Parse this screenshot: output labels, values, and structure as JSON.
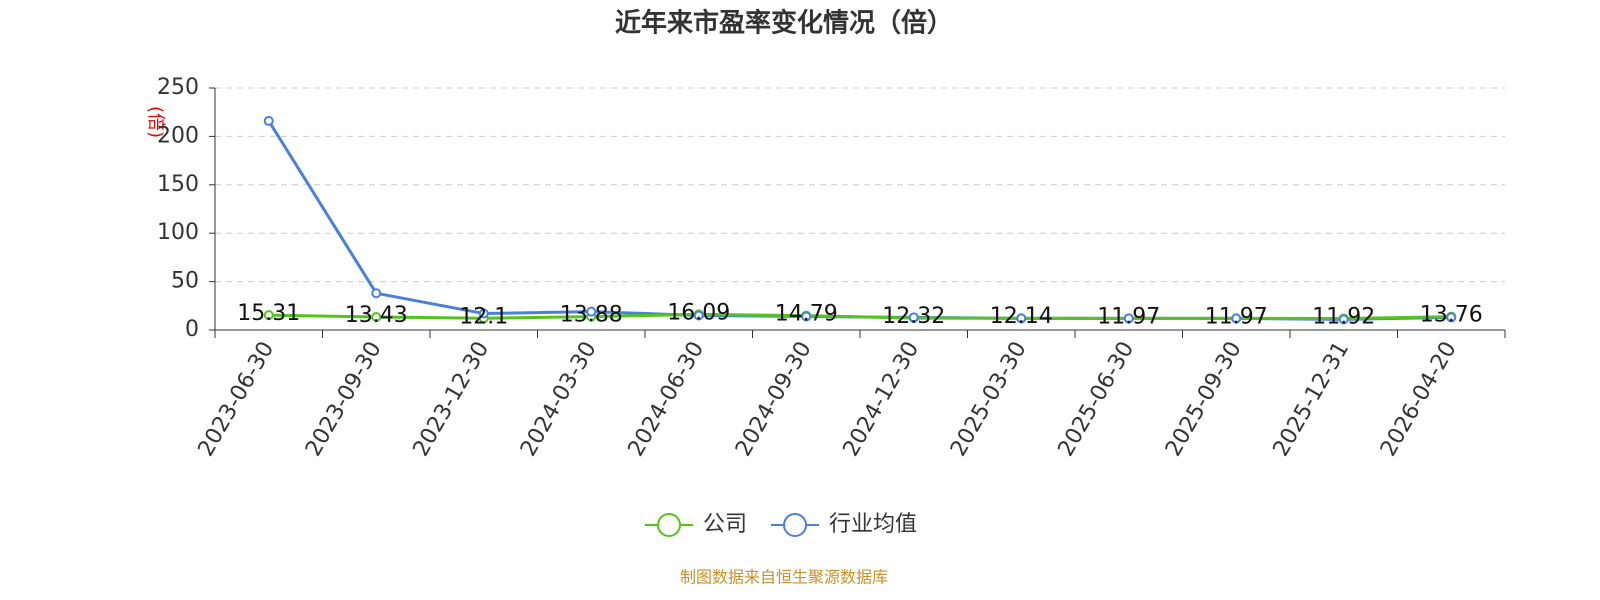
{
  "chart_data": {
    "type": "line",
    "title": "近年来市盈率变化情况（倍）",
    "y_label": "(倍)",
    "source": "制图数据来自恒生聚源数据库",
    "categories": [
      "2023-06-30",
      "2023-09-30",
      "2023-12-30",
      "2024-03-30",
      "2024-06-30",
      "2024-09-30",
      "2024-12-30",
      "2025-03-30",
      "2025-06-30",
      "2025-09-30",
      "2025-12-31",
      "2026-04-20"
    ],
    "series": [
      {
        "name": "公司",
        "color": "#52c41a",
        "values": [
          15.31,
          13.43,
          12.1,
          13.88,
          16.09,
          14.79,
          12.32,
          12.14,
          11.97,
          11.97,
          11.92,
          13.76
        ],
        "show_labels": true
      },
      {
        "name": "行业均值",
        "color": "#4a7fdc",
        "values": [
          216,
          38,
          17,
          19,
          15,
          14,
          13,
          12,
          12,
          12,
          11,
          13
        ],
        "show_labels": false
      }
    ],
    "ylim": [
      0,
      250
    ],
    "yticks": [
      0,
      50,
      100,
      150,
      200,
      250
    ],
    "grid": true
  }
}
